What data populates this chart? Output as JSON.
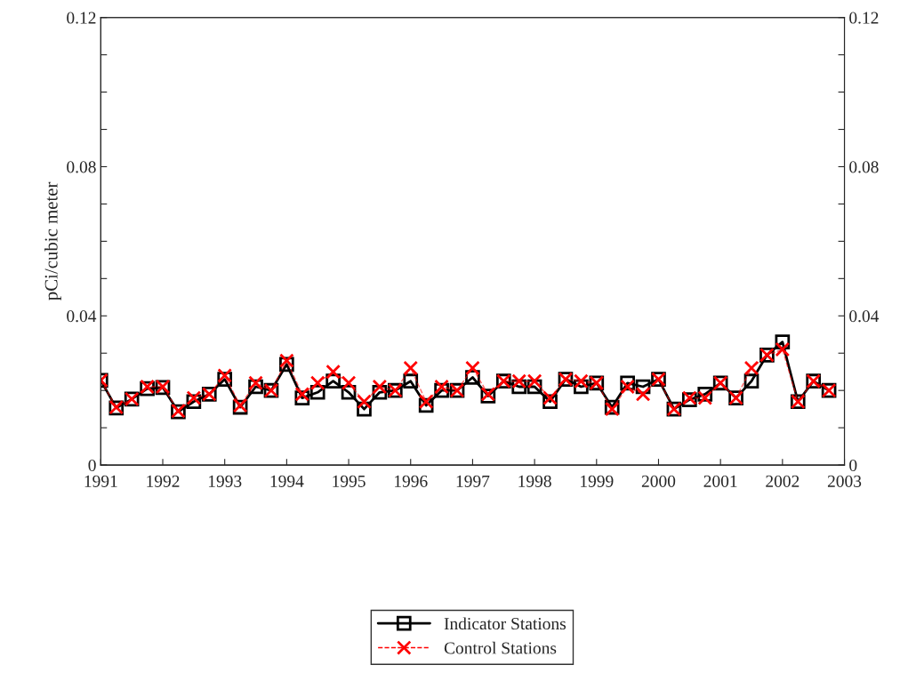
{
  "chart_data": {
    "type": "line",
    "ylabel": "pCi/cubic meter",
    "x": [
      1991.0,
      1991.25,
      1991.5,
      1991.75,
      1992.0,
      1992.25,
      1992.5,
      1992.75,
      1993.0,
      1993.25,
      1993.5,
      1993.75,
      1994.0,
      1994.25,
      1994.5,
      1994.75,
      1995.0,
      1995.25,
      1995.5,
      1995.75,
      1996.0,
      1996.25,
      1996.5,
      1996.75,
      1997.0,
      1997.25,
      1997.5,
      1997.75,
      1998.0,
      1998.25,
      1998.5,
      1998.75,
      1999.0,
      1999.25,
      1999.5,
      1999.75,
      2000.0,
      2000.25,
      2000.5,
      2000.75,
      2001.0,
      2001.25,
      2001.5,
      2001.75,
      2002.0,
      2002.25,
      2002.5,
      2002.75
    ],
    "series": [
      {
        "name": "Indicator Stations",
        "color": "#000000",
        "marker": "square",
        "line_style": "solid",
        "values": [
          0.0227,
          0.0153,
          0.0177,
          0.0205,
          0.0208,
          0.0143,
          0.017,
          0.019,
          0.023,
          0.0155,
          0.021,
          0.02,
          0.027,
          0.018,
          0.0195,
          0.0225,
          0.0195,
          0.015,
          0.0195,
          0.02,
          0.0225,
          0.016,
          0.02,
          0.02,
          0.0235,
          0.0185,
          0.0225,
          0.021,
          0.021,
          0.017,
          0.023,
          0.021,
          0.022,
          0.0155,
          0.022,
          0.021,
          0.023,
          0.015,
          0.0175,
          0.019,
          0.022,
          0.018,
          0.0225,
          0.0295,
          0.033,
          0.017,
          0.0225,
          0.02
        ]
      },
      {
        "name": "Control Stations",
        "color": "#ff0000",
        "marker": "cross",
        "line_style": "dashed",
        "values": [
          0.0227,
          0.0155,
          0.0177,
          0.021,
          0.021,
          0.0145,
          0.018,
          0.019,
          0.024,
          0.016,
          0.022,
          0.02,
          0.028,
          0.019,
          0.022,
          0.025,
          0.022,
          0.017,
          0.021,
          0.02,
          0.026,
          0.017,
          0.021,
          0.02,
          0.026,
          0.019,
          0.0225,
          0.0225,
          0.0225,
          0.018,
          0.023,
          0.0225,
          0.022,
          0.015,
          0.021,
          0.019,
          0.023,
          0.015,
          0.018,
          0.018,
          0.022,
          0.018,
          0.026,
          0.0295,
          0.031,
          0.017,
          0.0225,
          0.02
        ]
      }
    ],
    "xlim": [
      1991,
      2003
    ],
    "xticks": [
      1991,
      1992,
      1993,
      1994,
      1995,
      1996,
      1997,
      1998,
      1999,
      2000,
      2001,
      2002,
      2003
    ],
    "ylim": [
      0,
      0.12
    ],
    "yticks": [
      0,
      {
        "value": 0.01,
        "label": null
      },
      {
        "value": 0.02,
        "label": null
      },
      {
        "value": 0.03,
        "label": null
      },
      0.04,
      {
        "value": 0.05,
        "label": null
      },
      {
        "value": 0.06,
        "label": null
      },
      {
        "value": 0.07,
        "label": null
      },
      0.08,
      {
        "value": 0.09,
        "label": null
      },
      {
        "value": 0.1,
        "label": null
      },
      {
        "value": 0.11,
        "label": null
      },
      0.12
    ],
    "y2lim": [
      0,
      0.12
    ],
    "y2ticks": [
      0,
      {
        "value": 0.01,
        "label": null
      },
      {
        "value": 0.02,
        "label": null
      },
      {
        "value": 0.03,
        "label": null
      },
      0.04,
      {
        "value": 0.05,
        "label": null
      },
      {
        "value": 0.06,
        "label": null
      },
      {
        "value": 0.07,
        "label": null
      },
      0.08,
      {
        "value": 0.09,
        "label": null
      },
      {
        "value": 0.1,
        "label": null
      },
      {
        "value": 0.11,
        "label": null
      },
      0.12
    ],
    "grid": false,
    "legend": "bottom"
  }
}
